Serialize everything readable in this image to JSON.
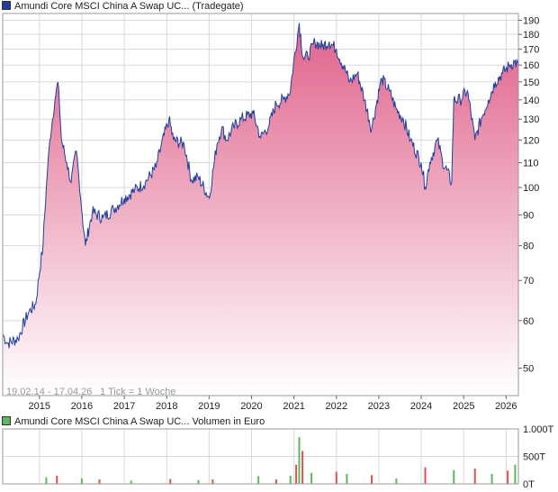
{
  "price_chart": {
    "legend": "Amundi Core MSCI China A Swap UC... (Tradegate)",
    "legend_color": "#1f3f9f",
    "date_range": "19.02.14 - 17.04.26",
    "tick_note": "1 Tick = 1 Woche"
  },
  "volume_chart": {
    "legend": "Amundi Core MSCI China A Swap UC... Volumen in Euro",
    "legend_color": "#5cb85c"
  },
  "colors": {
    "line": "#1f3f9f",
    "area_top": "#e0628a",
    "area_bottom": "#ffffff",
    "grid": "#d8d8d8",
    "vol_up": "#5cb85c",
    "vol_down": "#d9534f"
  },
  "chart_data": [
    {
      "type": "area",
      "title": "Amundi Core MSCI China A Swap UC... (Tradegate)",
      "xlabel": "",
      "ylabel": "",
      "y_scale": "log",
      "ylim": [
        45,
        195
      ],
      "xlim": [
        "2014-02-19",
        "2026-04-17"
      ],
      "grid": true,
      "x_tick_labels": [
        "2015",
        "2016",
        "2017",
        "2018",
        "2019",
        "2020",
        "2021",
        "2022",
        "2023",
        "2024",
        "2025",
        "2026"
      ],
      "y_tick_labels": [
        "190",
        "180",
        "170",
        "160",
        "150",
        "140",
        "130",
        "120",
        "110",
        "100",
        "90",
        "80",
        "70",
        "60",
        "50"
      ],
      "x": [
        "2014-02-19",
        "2014-04-01",
        "2014-07-01",
        "2014-10-01",
        "2014-12-01",
        "2015-02-01",
        "2015-04-01",
        "2015-05-15",
        "2015-06-10",
        "2015-07-10",
        "2015-08-25",
        "2015-10-01",
        "2015-11-15",
        "2016-01-05",
        "2016-02-01",
        "2016-04-01",
        "2016-07-01",
        "2016-10-01",
        "2017-01-01",
        "2017-04-01",
        "2017-07-01",
        "2017-10-01",
        "2018-01-20",
        "2018-03-01",
        "2018-06-01",
        "2018-08-01",
        "2018-10-01",
        "2019-01-04",
        "2019-03-10",
        "2019-04-20",
        "2019-06-01",
        "2019-08-01",
        "2019-10-01",
        "2020-01-15",
        "2020-03-20",
        "2020-06-01",
        "2020-08-01",
        "2020-10-01",
        "2020-12-01",
        "2021-02-15",
        "2021-03-20",
        "2021-05-01",
        "2021-07-01",
        "2021-09-01",
        "2021-11-01",
        "2022-01-01",
        "2022-04-26",
        "2022-07-01",
        "2022-09-01",
        "2022-10-31",
        "2023-01-27",
        "2023-04-01",
        "2023-06-01",
        "2023-08-01",
        "2023-10-01",
        "2024-01-01",
        "2024-02-05",
        "2024-03-15",
        "2024-05-20",
        "2024-07-01",
        "2024-09-20",
        "2024-10-08",
        "2024-12-01",
        "2025-02-01",
        "2025-04-08",
        "2025-06-01",
        "2025-08-01",
        "2025-10-01",
        "2025-12-01",
        "2026-02-01",
        "2026-03-15",
        "2026-04-17"
      ],
      "y": [
        57,
        55,
        56,
        62,
        64,
        80,
        120,
        140,
        150,
        120,
        110,
        102,
        115,
        90,
        80,
        91,
        89,
        92,
        96,
        99,
        102,
        108,
        130,
        120,
        118,
        103,
        104,
        96,
        118,
        126,
        120,
        126,
        130,
        133,
        121,
        127,
        138,
        140,
        145,
        188,
        165,
        165,
        175,
        172,
        175,
        170,
        150,
        155,
        140,
        125,
        152,
        145,
        135,
        130,
        120,
        110,
        100,
        110,
        120,
        111,
        102,
        140,
        140,
        145,
        120,
        130,
        140,
        150,
        155,
        160,
        162,
        160
      ]
    },
    {
      "type": "bar",
      "title": "Amundi Core MSCI China A Swap UC... Volumen in Euro",
      "xlabel": "",
      "ylabel": "",
      "ylim": [
        0,
        1000
      ],
      "y_tick_labels": [
        "1.000T",
        "500T",
        "0T"
      ],
      "x": [
        "2015-03-01",
        "2015-06-01",
        "2016-01-01",
        "2016-06-01",
        "2017-03-01",
        "2018-02-01",
        "2018-10-01",
        "2019-02-01",
        "2020-03-01",
        "2020-08-01",
        "2020-12-01",
        "2021-01-20",
        "2021-02-15",
        "2021-03-15",
        "2021-06-01",
        "2022-01-01",
        "2022-04-01",
        "2022-11-01",
        "2023-06-01",
        "2024-02-05",
        "2024-10-08",
        "2025-04-08",
        "2025-09-01",
        "2026-01-15",
        "2026-03-20"
      ],
      "values": [
        120,
        150,
        100,
        80,
        60,
        90,
        70,
        80,
        140,
        80,
        150,
        350,
        850,
        600,
        200,
        220,
        180,
        160,
        100,
        300,
        250,
        280,
        180,
        240,
        350
      ]
    }
  ]
}
